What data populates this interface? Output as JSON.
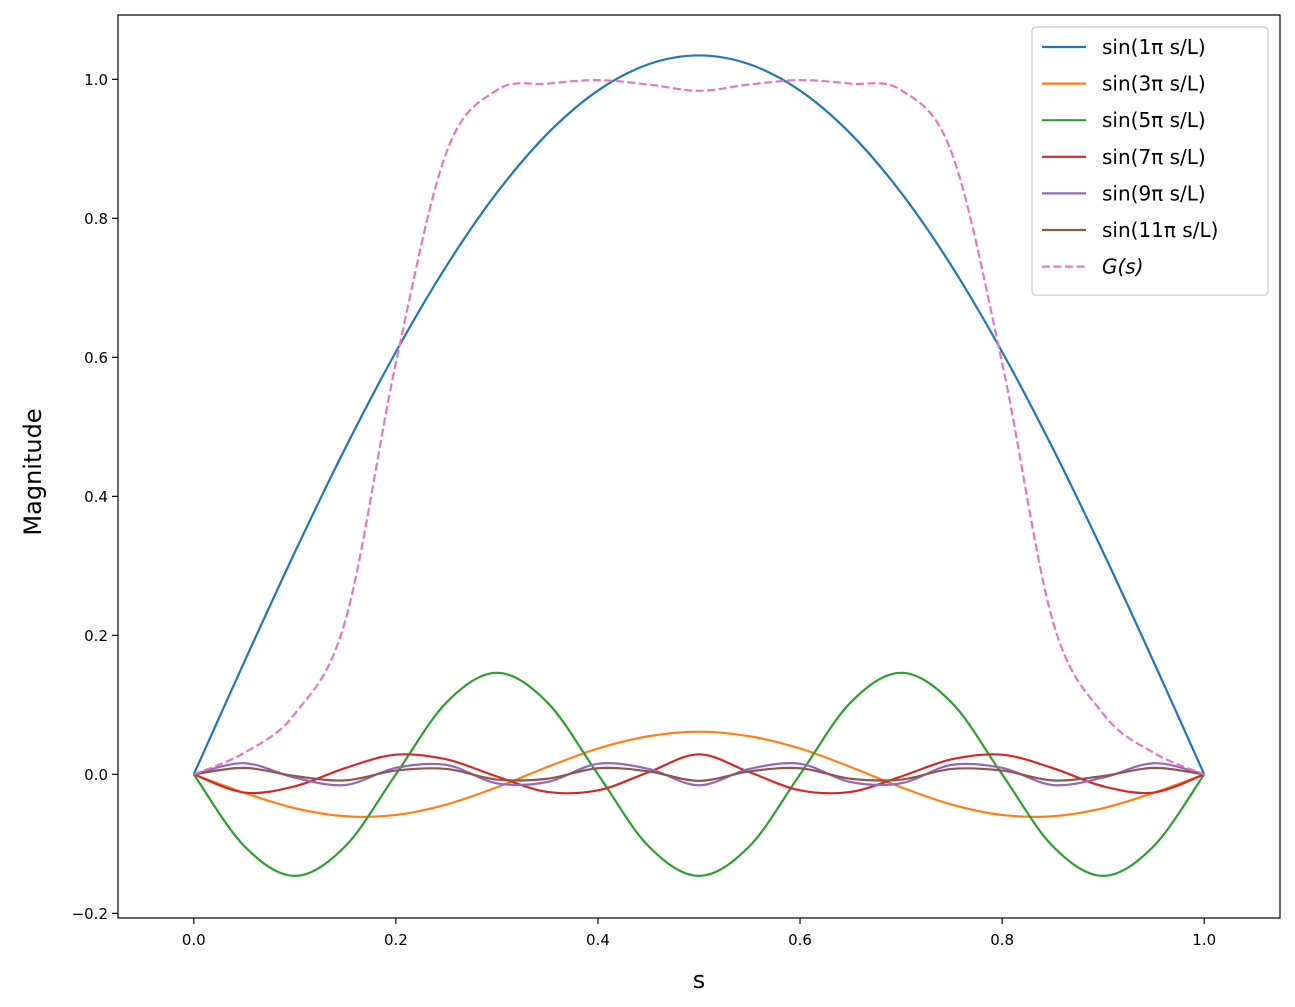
{
  "chart_data": {
    "type": "line",
    "title": "",
    "xlabel": "s",
    "ylabel": "Magnitude",
    "xlim": [
      -0.075,
      1.075
    ],
    "ylim": [
      -0.2067,
      1.0926
    ],
    "x_ticks": [
      0.0,
      0.2,
      0.4,
      0.6,
      0.8,
      1.0
    ],
    "x_tick_labels": [
      "0.0",
      "0.2",
      "0.4",
      "0.6",
      "0.8",
      "1.0"
    ],
    "y_ticks": [
      -0.2,
      0.0,
      0.2,
      0.4,
      0.6,
      0.8,
      1.0
    ],
    "y_tick_labels": [
      "−0.2",
      "0.0",
      "0.2",
      "0.4",
      "0.6",
      "0.8",
      "1.0"
    ],
    "grid": false,
    "legend_position": "top-right",
    "x": [
      0.0,
      0.05,
      0.1,
      0.15,
      0.2,
      0.25,
      0.3,
      0.35,
      0.4,
      0.45,
      0.5,
      0.55,
      0.6,
      0.65,
      0.7,
      0.75,
      0.8,
      0.85,
      0.9,
      0.95,
      1.0
    ],
    "series": [
      {
        "name": "sin(1π s/L)",
        "color": "#1f77b4",
        "dash": false,
        "values": [
          0.0,
          0.1618,
          0.3196,
          0.4695,
          0.6079,
          0.7314,
          0.8369,
          0.9218,
          0.9839,
          1.0217,
          1.0344,
          1.0217,
          0.9839,
          0.9218,
          0.8369,
          0.7314,
          0.6079,
          0.4695,
          0.3196,
          0.1618,
          0.0
        ]
      },
      {
        "name": "sin(3π s/L)",
        "color": "#ff7f0e",
        "dash": false,
        "values": [
          0.0,
          -0.0266,
          -0.0487,
          -0.0603,
          -0.0584,
          -0.0434,
          -0.0186,
          0.0106,
          0.0372,
          0.0548,
          0.0614,
          0.0548,
          0.0372,
          0.0106,
          -0.0186,
          -0.0434,
          -0.0584,
          -0.0603,
          -0.0487,
          -0.0266,
          0.0
        ]
      },
      {
        "name": "sin(5π s/L)",
        "color": "#2ca02c",
        "dash": false,
        "values": [
          0.0,
          -0.1033,
          -0.1461,
          -0.1033,
          0.0,
          0.1033,
          0.1461,
          0.1033,
          0.0,
          -0.1033,
          -0.1461,
          -0.1033,
          0.0,
          0.1033,
          0.1461,
          0.1033,
          0.0,
          -0.1033,
          -0.1461,
          -0.1033,
          0.0
        ]
      },
      {
        "name": "sin(7π s/L)",
        "color": "#d62728",
        "dash": false,
        "values": [
          0.0,
          -0.0262,
          -0.0172,
          0.0091,
          0.0283,
          0.0216,
          -0.0031,
          -0.0253,
          -0.023,
          0.003,
          0.0288,
          0.003,
          -0.023,
          -0.0253,
          -0.0031,
          0.0216,
          0.0283,
          0.0091,
          -0.0172,
          -0.0262,
          0.0
        ]
      },
      {
        "name": "sin(9π s/L)",
        "color": "#9467bd",
        "dash": false,
        "values": [
          0.0,
          0.016,
          -0.0048,
          -0.0153,
          0.0094,
          0.0136,
          -0.0129,
          -0.011,
          0.0152,
          0.0079,
          -0.0157,
          0.0079,
          0.0152,
          -0.011,
          -0.0129,
          0.0136,
          0.0094,
          -0.0153,
          -0.0048,
          0.016,
          0.0
        ]
      },
      {
        "name": "sin(11π s/L)",
        "color": "#8c564b",
        "dash": false,
        "values": [
          0.0,
          0.0093,
          -0.0024,
          -0.0087,
          0.0054,
          0.0078,
          -0.0075,
          -0.0063,
          0.0088,
          0.0043,
          -0.0093,
          0.0043,
          0.0088,
          -0.0063,
          -0.0075,
          0.0078,
          0.0054,
          -0.0087,
          -0.0024,
          0.0093,
          0.0
        ]
      },
      {
        "name": "G(s)",
        "color": "#e377c2",
        "dash": true,
        "values": [
          0.0,
          0.031,
          0.0871,
          0.2213,
          0.592,
          0.8947,
          0.9845,
          0.9938,
          0.9989,
          0.9926,
          0.9835,
          0.9926,
          0.9989,
          0.9938,
          0.9845,
          0.8947,
          0.592,
          0.2213,
          0.0871,
          0.031,
          0.0
        ]
      }
    ]
  }
}
